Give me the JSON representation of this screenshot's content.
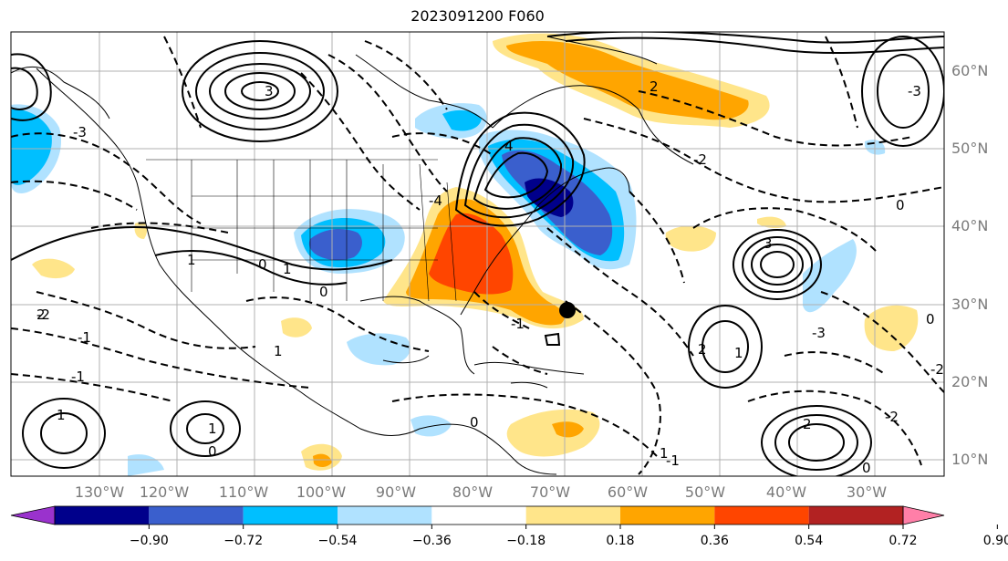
{
  "title": "2023091200 F060",
  "lon_labels": [
    "130°W",
    "120°W",
    "110°W",
    "100°W",
    "90°W",
    "80°W",
    "70°W",
    "60°W",
    "50°W",
    "40°W",
    "30°W"
  ],
  "lat_labels": [
    "60°N",
    "50°N",
    "40°N",
    "30°N",
    "20°N",
    "10°N"
  ],
  "colorbar": {
    "ticks": [
      "−0.90",
      "−0.72",
      "−0.54",
      "−0.36",
      "−0.18",
      "0.18",
      "0.36",
      "0.54",
      "0.72",
      "0.90"
    ],
    "colors": [
      "#9a32cd",
      "#00008b",
      "#3a5fcd",
      "#00bfff",
      "#b0e2ff",
      "#ffffff",
      "#ffe58a",
      "#ffa500",
      "#ff4500",
      "#b22222",
      "#ff7fa8"
    ]
  },
  "contour_labels": [
    "1",
    "0",
    "-1",
    "-2",
    "-3",
    "1",
    "2",
    "3",
    "4",
    "0",
    "-4",
    "1",
    "0",
    "-1",
    "2",
    "-2",
    "-1",
    "-3",
    "1",
    "0",
    "-2",
    "3",
    "2",
    "1",
    "-1",
    "0",
    "1",
    "-3",
    "0",
    "-2",
    "2",
    "1",
    "0"
  ],
  "storm_marker": "tropical-cyclone-position"
}
